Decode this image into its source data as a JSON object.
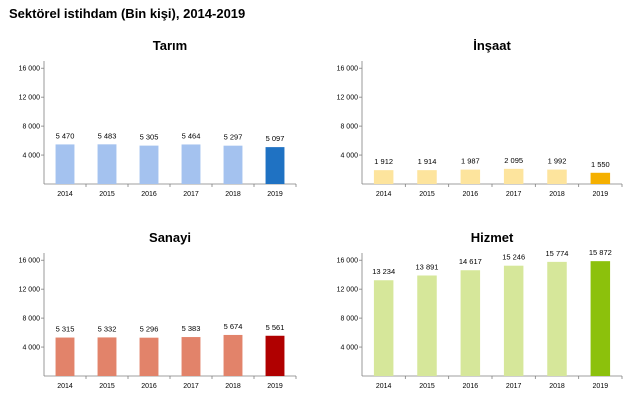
{
  "title": "Sektörel istihdam (Bin kişi), 2014-2019",
  "chart_data": [
    {
      "type": "bar",
      "title": "Tarım",
      "categories": [
        "2014",
        "2015",
        "2016",
        "2017",
        "2018",
        "2019"
      ],
      "values": [
        5470,
        5483,
        5305,
        5464,
        5297,
        5097
      ],
      "value_labels": [
        "5 470",
        "5 483",
        "5 305",
        "5 464",
        "5 297",
        "5 097"
      ],
      "yticks": [
        4000,
        8000,
        12000,
        16000
      ],
      "ytick_labels": [
        "4 000",
        "8 000",
        "12 000",
        "16 000"
      ],
      "ylim": [
        0,
        17000
      ],
      "colors": {
        "bar": "#a4c2ef",
        "highlight": "#1f72c3"
      }
    },
    {
      "type": "bar",
      "title": "İnşaat",
      "categories": [
        "2014",
        "2015",
        "2016",
        "2017",
        "2018",
        "2019"
      ],
      "values": [
        1912,
        1914,
        1987,
        2095,
        1992,
        1550
      ],
      "value_labels": [
        "1 912",
        "1 914",
        "1 987",
        "2 095",
        "1 992",
        "1 550"
      ],
      "yticks": [
        4000,
        8000,
        12000,
        16000
      ],
      "ytick_labels": [
        "4 000",
        "8 000",
        "12 000",
        "16 000"
      ],
      "ylim": [
        0,
        17000
      ],
      "colors": {
        "bar": "#fde49d",
        "highlight": "#f5b000"
      }
    },
    {
      "type": "bar",
      "title": "Sanayi",
      "categories": [
        "2014",
        "2015",
        "2016",
        "2017",
        "2018",
        "2019"
      ],
      "values": [
        5315,
        5332,
        5296,
        5383,
        5674,
        5561
      ],
      "value_labels": [
        "5 315",
        "5 332",
        "5 296",
        "5 383",
        "5 674",
        "5 561"
      ],
      "yticks": [
        4000,
        8000,
        12000,
        16000
      ],
      "ytick_labels": [
        "4 000",
        "8 000",
        "12 000",
        "16 000"
      ],
      "ylim": [
        0,
        17000
      ],
      "colors": {
        "bar": "#e2836a",
        "highlight": "#b00000"
      }
    },
    {
      "type": "bar",
      "title": "Hizmet",
      "categories": [
        "2014",
        "2015",
        "2016",
        "2017",
        "2018",
        "2019"
      ],
      "values": [
        13234,
        13891,
        14617,
        15246,
        15774,
        15872
      ],
      "value_labels": [
        "13 234",
        "13 891",
        "14 617",
        "15 246",
        "15 774",
        "15 872"
      ],
      "yticks": [
        4000,
        8000,
        12000,
        16000
      ],
      "ytick_labels": [
        "4 000",
        "8 000",
        "12 000",
        "16 000"
      ],
      "ylim": [
        0,
        17000
      ],
      "colors": {
        "bar": "#d6e79a",
        "highlight": "#8cc10c"
      }
    }
  ]
}
